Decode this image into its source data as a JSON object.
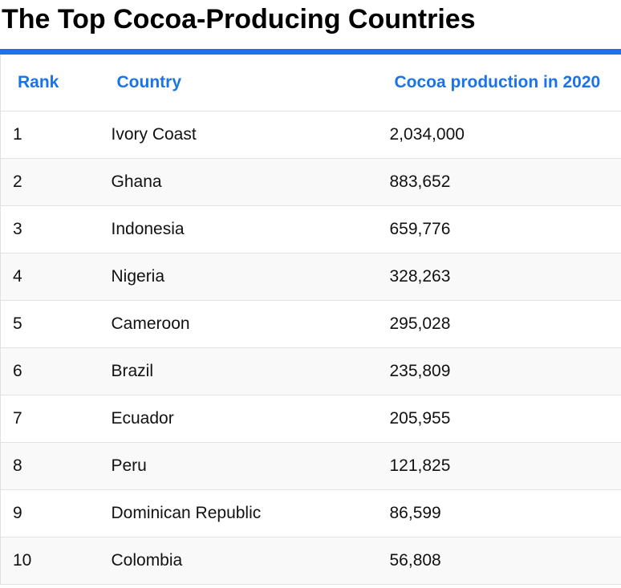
{
  "title": "The Top Cocoa-Producing Countries",
  "colors": {
    "accent": "#1a73e8",
    "stripe": "#f9f9f9"
  },
  "table": {
    "headers": {
      "rank": "Rank",
      "country": "Country",
      "production": "Cocoa production in 2020"
    },
    "rows": [
      {
        "rank": "1",
        "country": "Ivory Coast",
        "production": "2,034,000"
      },
      {
        "rank": "2",
        "country": "Ghana",
        "production": "883,652"
      },
      {
        "rank": "3",
        "country": "Indonesia",
        "production": "659,776"
      },
      {
        "rank": "4",
        "country": "Nigeria",
        "production": "328,263"
      },
      {
        "rank": "5",
        "country": "Cameroon",
        "production": "295,028"
      },
      {
        "rank": "6",
        "country": "Brazil",
        "production": "235,809"
      },
      {
        "rank": "7",
        "country": "Ecuador",
        "production": "205,955"
      },
      {
        "rank": "8",
        "country": "Peru",
        "production": "121,825"
      },
      {
        "rank": "9",
        "country": "Dominican Republic",
        "production": "86,599"
      },
      {
        "rank": "10",
        "country": "Colombia",
        "production": "56,808"
      }
    ]
  }
}
